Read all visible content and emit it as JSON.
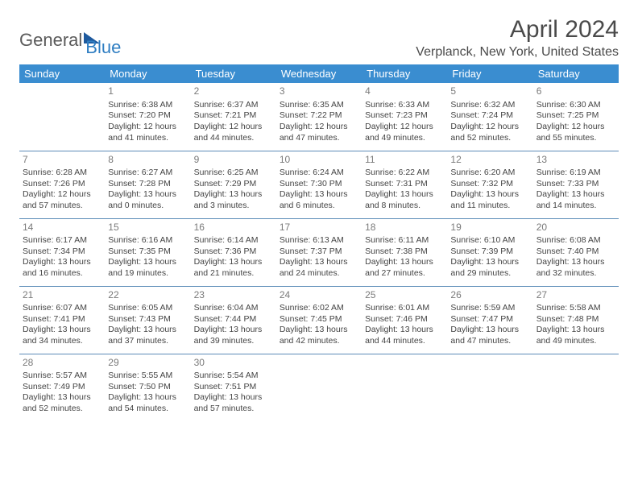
{
  "logo": {
    "part1": "General",
    "part2": "Blue"
  },
  "title": "April 2024",
  "location": "Verplanck, New York, United States",
  "colors": {
    "header_bg": "#3a8dd0",
    "header_text": "#ffffff",
    "border": "#5c8cb8",
    "logo_blue": "#2f7ec2",
    "logo_gray": "#5a5a5a",
    "text": "#444444",
    "daynum": "#7a7a7a"
  },
  "weekdays": [
    "Sunday",
    "Monday",
    "Tuesday",
    "Wednesday",
    "Thursday",
    "Friday",
    "Saturday"
  ],
  "weeks": [
    [
      {},
      {
        "n": "1",
        "sr": "Sunrise: 6:38 AM",
        "ss": "Sunset: 7:20 PM",
        "dl1": "Daylight: 12 hours",
        "dl2": "and 41 minutes."
      },
      {
        "n": "2",
        "sr": "Sunrise: 6:37 AM",
        "ss": "Sunset: 7:21 PM",
        "dl1": "Daylight: 12 hours",
        "dl2": "and 44 minutes."
      },
      {
        "n": "3",
        "sr": "Sunrise: 6:35 AM",
        "ss": "Sunset: 7:22 PM",
        "dl1": "Daylight: 12 hours",
        "dl2": "and 47 minutes."
      },
      {
        "n": "4",
        "sr": "Sunrise: 6:33 AM",
        "ss": "Sunset: 7:23 PM",
        "dl1": "Daylight: 12 hours",
        "dl2": "and 49 minutes."
      },
      {
        "n": "5",
        "sr": "Sunrise: 6:32 AM",
        "ss": "Sunset: 7:24 PM",
        "dl1": "Daylight: 12 hours",
        "dl2": "and 52 minutes."
      },
      {
        "n": "6",
        "sr": "Sunrise: 6:30 AM",
        "ss": "Sunset: 7:25 PM",
        "dl1": "Daylight: 12 hours",
        "dl2": "and 55 minutes."
      }
    ],
    [
      {
        "n": "7",
        "sr": "Sunrise: 6:28 AM",
        "ss": "Sunset: 7:26 PM",
        "dl1": "Daylight: 12 hours",
        "dl2": "and 57 minutes."
      },
      {
        "n": "8",
        "sr": "Sunrise: 6:27 AM",
        "ss": "Sunset: 7:28 PM",
        "dl1": "Daylight: 13 hours",
        "dl2": "and 0 minutes."
      },
      {
        "n": "9",
        "sr": "Sunrise: 6:25 AM",
        "ss": "Sunset: 7:29 PM",
        "dl1": "Daylight: 13 hours",
        "dl2": "and 3 minutes."
      },
      {
        "n": "10",
        "sr": "Sunrise: 6:24 AM",
        "ss": "Sunset: 7:30 PM",
        "dl1": "Daylight: 13 hours",
        "dl2": "and 6 minutes."
      },
      {
        "n": "11",
        "sr": "Sunrise: 6:22 AM",
        "ss": "Sunset: 7:31 PM",
        "dl1": "Daylight: 13 hours",
        "dl2": "and 8 minutes."
      },
      {
        "n": "12",
        "sr": "Sunrise: 6:20 AM",
        "ss": "Sunset: 7:32 PM",
        "dl1": "Daylight: 13 hours",
        "dl2": "and 11 minutes."
      },
      {
        "n": "13",
        "sr": "Sunrise: 6:19 AM",
        "ss": "Sunset: 7:33 PM",
        "dl1": "Daylight: 13 hours",
        "dl2": "and 14 minutes."
      }
    ],
    [
      {
        "n": "14",
        "sr": "Sunrise: 6:17 AM",
        "ss": "Sunset: 7:34 PM",
        "dl1": "Daylight: 13 hours",
        "dl2": "and 16 minutes."
      },
      {
        "n": "15",
        "sr": "Sunrise: 6:16 AM",
        "ss": "Sunset: 7:35 PM",
        "dl1": "Daylight: 13 hours",
        "dl2": "and 19 minutes."
      },
      {
        "n": "16",
        "sr": "Sunrise: 6:14 AM",
        "ss": "Sunset: 7:36 PM",
        "dl1": "Daylight: 13 hours",
        "dl2": "and 21 minutes."
      },
      {
        "n": "17",
        "sr": "Sunrise: 6:13 AM",
        "ss": "Sunset: 7:37 PM",
        "dl1": "Daylight: 13 hours",
        "dl2": "and 24 minutes."
      },
      {
        "n": "18",
        "sr": "Sunrise: 6:11 AM",
        "ss": "Sunset: 7:38 PM",
        "dl1": "Daylight: 13 hours",
        "dl2": "and 27 minutes."
      },
      {
        "n": "19",
        "sr": "Sunrise: 6:10 AM",
        "ss": "Sunset: 7:39 PM",
        "dl1": "Daylight: 13 hours",
        "dl2": "and 29 minutes."
      },
      {
        "n": "20",
        "sr": "Sunrise: 6:08 AM",
        "ss": "Sunset: 7:40 PM",
        "dl1": "Daylight: 13 hours",
        "dl2": "and 32 minutes."
      }
    ],
    [
      {
        "n": "21",
        "sr": "Sunrise: 6:07 AM",
        "ss": "Sunset: 7:41 PM",
        "dl1": "Daylight: 13 hours",
        "dl2": "and 34 minutes."
      },
      {
        "n": "22",
        "sr": "Sunrise: 6:05 AM",
        "ss": "Sunset: 7:43 PM",
        "dl1": "Daylight: 13 hours",
        "dl2": "and 37 minutes."
      },
      {
        "n": "23",
        "sr": "Sunrise: 6:04 AM",
        "ss": "Sunset: 7:44 PM",
        "dl1": "Daylight: 13 hours",
        "dl2": "and 39 minutes."
      },
      {
        "n": "24",
        "sr": "Sunrise: 6:02 AM",
        "ss": "Sunset: 7:45 PM",
        "dl1": "Daylight: 13 hours",
        "dl2": "and 42 minutes."
      },
      {
        "n": "25",
        "sr": "Sunrise: 6:01 AM",
        "ss": "Sunset: 7:46 PM",
        "dl1": "Daylight: 13 hours",
        "dl2": "and 44 minutes."
      },
      {
        "n": "26",
        "sr": "Sunrise: 5:59 AM",
        "ss": "Sunset: 7:47 PM",
        "dl1": "Daylight: 13 hours",
        "dl2": "and 47 minutes."
      },
      {
        "n": "27",
        "sr": "Sunrise: 5:58 AM",
        "ss": "Sunset: 7:48 PM",
        "dl1": "Daylight: 13 hours",
        "dl2": "and 49 minutes."
      }
    ],
    [
      {
        "n": "28",
        "sr": "Sunrise: 5:57 AM",
        "ss": "Sunset: 7:49 PM",
        "dl1": "Daylight: 13 hours",
        "dl2": "and 52 minutes."
      },
      {
        "n": "29",
        "sr": "Sunrise: 5:55 AM",
        "ss": "Sunset: 7:50 PM",
        "dl1": "Daylight: 13 hours",
        "dl2": "and 54 minutes."
      },
      {
        "n": "30",
        "sr": "Sunrise: 5:54 AM",
        "ss": "Sunset: 7:51 PM",
        "dl1": "Daylight: 13 hours",
        "dl2": "and 57 minutes."
      },
      {},
      {},
      {},
      {}
    ]
  ]
}
